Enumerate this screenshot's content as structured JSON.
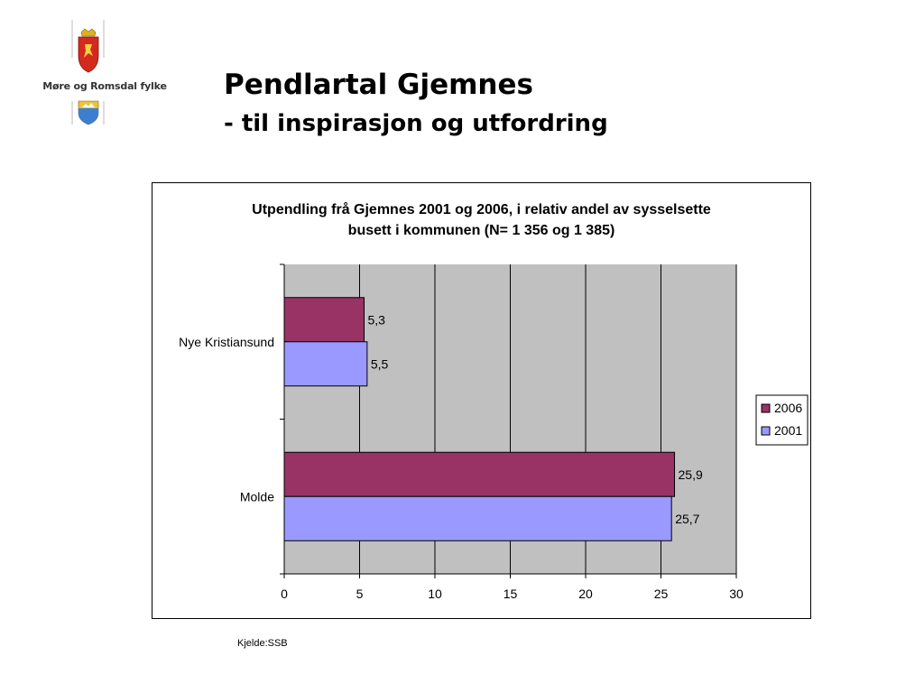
{
  "header": {
    "title": "Pendlartal Gjemnes",
    "subtitle": "- til inspirasjon og utfordring"
  },
  "logo": {
    "org_name": "Møre og Romsdal fylke",
    "icons": [
      "coat-of-arms-icon",
      "county-shield-icon"
    ]
  },
  "chart_data": {
    "type": "bar",
    "orientation": "horizontal",
    "title_lines": [
      "Utpendling frå Gjemnes 2001 og 2006, i relativ andel av sysselsette",
      "busett i kommunen (N= 1 356 og 1 385)"
    ],
    "categories": [
      "Nye Kristiansund",
      "Molde"
    ],
    "series": [
      {
        "name": "2006",
        "values": [
          5.3,
          25.9
        ],
        "labels": [
          "5,3",
          "25,9"
        ],
        "color": "#993366"
      },
      {
        "name": "2001",
        "values": [
          5.5,
          25.7
        ],
        "labels": [
          "5,5",
          "25,7"
        ],
        "color": "#9999ff"
      }
    ],
    "xlim": [
      0,
      30
    ],
    "xticks": [
      0,
      5,
      10,
      15,
      20,
      25,
      30
    ],
    "xtick_labels": [
      "0",
      "5",
      "10",
      "15",
      "20",
      "25",
      "30"
    ],
    "plot_background": "#c0c0c0",
    "grid": true,
    "legend_position": "right"
  },
  "footer": {
    "source": "Kjelde:SSB"
  }
}
